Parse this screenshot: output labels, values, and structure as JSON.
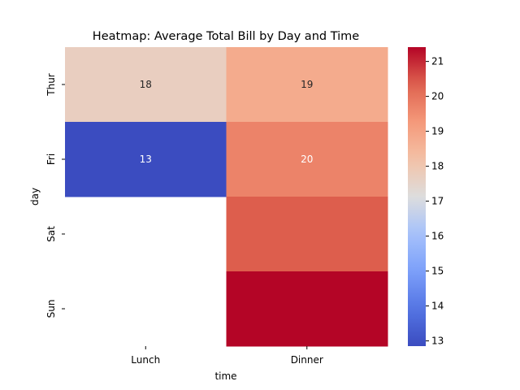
{
  "chart_data": {
    "type": "heatmap",
    "title": "Heatmap: Average Total Bill by Day and Time",
    "xlabel": "time",
    "ylabel": "day",
    "x_categories": [
      "Lunch",
      "Dinner"
    ],
    "y_categories": [
      "Thur",
      "Fri",
      "Sat",
      "Sun"
    ],
    "values": [
      [
        17.7,
        18.8
      ],
      [
        12.8,
        19.7
      ],
      [
        null,
        20.4
      ],
      [
        null,
        21.4
      ]
    ],
    "annotations": [
      [
        "18",
        "19"
      ],
      [
        "13",
        "20"
      ],
      [
        "",
        ""
      ],
      [
        "",
        ""
      ]
    ],
    "colormap": "coolwarm",
    "colorbar": {
      "range": [
        12.85,
        21.41
      ],
      "ticks": [
        13,
        14,
        15,
        16,
        17,
        18,
        19,
        20,
        21
      ]
    },
    "colors": {
      "low": "#3b4cc0",
      "mid": "#dddddd",
      "high": "#b40426"
    }
  }
}
